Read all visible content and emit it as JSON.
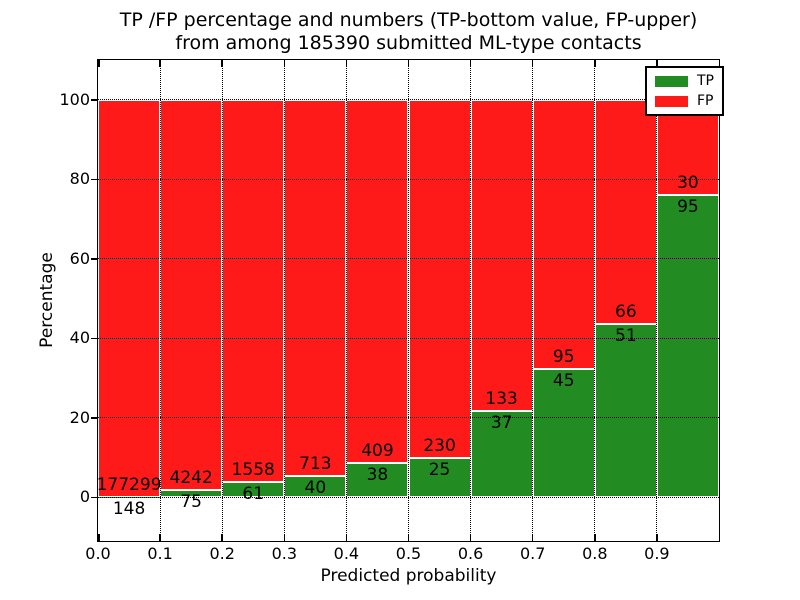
{
  "title": {
    "line1": "TP /FP percentage and numbers (TP-bottom value, FP-upper)",
    "line2": "from among 185390 submitted ML-type contacts"
  },
  "axes": {
    "xlabel": "Predicted probability",
    "ylabel": "Percentage",
    "x_tick_values": [
      0.0,
      0.1,
      0.2,
      0.3,
      0.4,
      0.5,
      0.6,
      0.7,
      0.8,
      0.9
    ],
    "x_tick_labels": [
      "0.0",
      "0.1",
      "0.2",
      "0.3",
      "0.4",
      "0.5",
      "0.6",
      "0.7",
      "0.8",
      "0.9"
    ],
    "y_tick_values": [
      0,
      20,
      40,
      60,
      80,
      100
    ],
    "y_tick_labels": [
      "0",
      "20",
      "40",
      "60",
      "80",
      "100"
    ]
  },
  "legend": {
    "position": "upper right",
    "items": [
      {
        "label": "TP",
        "color": "#228B22"
      },
      {
        "label": "FP",
        "color": "#FF1A1A"
      }
    ]
  },
  "colors": {
    "tp": "#228B22",
    "fp": "#FF1A1A",
    "bar_edge": "#FFFFFF",
    "grid": "#000000",
    "background": "#FFFFFF",
    "text": "#000000"
  },
  "chart_data": {
    "type": "bar",
    "stacked": true,
    "normalized_to_percent": true,
    "title": "TP /FP percentage and numbers (TP-bottom value, FP-upper) from among 185390 submitted ML-type contacts",
    "xlabel": "Predicted probability",
    "ylabel": "Percentage",
    "total_submitted": 185390,
    "xlim": [
      0,
      1
    ],
    "ylim": [
      -11,
      110
    ],
    "grid": true,
    "legend_position": "upper right",
    "bin_width": 0.1,
    "bin_starts": [
      0.0,
      0.1,
      0.2,
      0.3,
      0.4,
      0.5,
      0.6,
      0.7,
      0.8,
      0.9
    ],
    "series": [
      {
        "name": "TP",
        "color": "#228B22",
        "counts": [
          148,
          75,
          61,
          40,
          38,
          25,
          37,
          45,
          51,
          95
        ]
      },
      {
        "name": "FP",
        "color": "#FF1A1A",
        "counts": [
          177299,
          4242,
          1558,
          713,
          409,
          230,
          133,
          95,
          66,
          30
        ]
      }
    ],
    "tp_percent": [
      0.08,
      1.74,
      3.77,
      5.31,
      8.5,
      9.8,
      21.76,
      32.14,
      43.59,
      76.0
    ]
  }
}
